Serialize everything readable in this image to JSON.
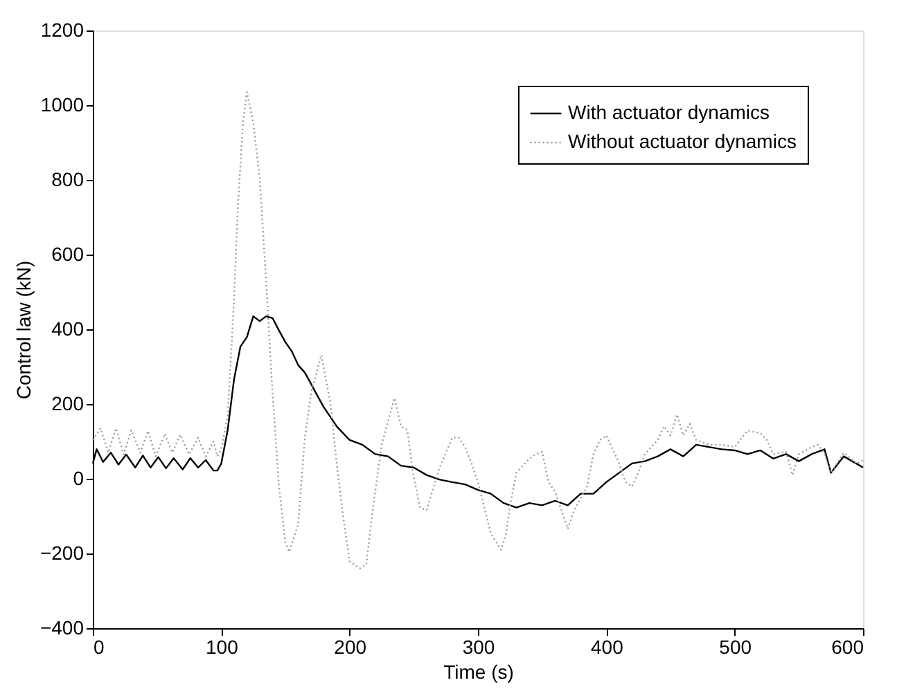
{
  "chart_data": {
    "type": "line",
    "xlabel": "Time (s)",
    "ylabel": "Control law (kN)",
    "xlim": [
      0,
      600
    ],
    "xticks": [
      0,
      100,
      200,
      300,
      400,
      500,
      600
    ],
    "ylim": [
      -400,
      1200
    ],
    "yticks": [
      -400,
      -200,
      0,
      200,
      400,
      600,
      800,
      1000,
      1200
    ],
    "grid": false,
    "legend": "top right",
    "marker": "none",
    "series": [
      {
        "name": "With actuator dynamics",
        "color": "#000000",
        "line_style": "solid",
        "x": [
          0,
          3,
          8,
          14,
          20,
          26,
          33,
          39,
          45,
          51,
          57,
          63,
          70,
          76,
          82,
          88,
          94,
          97,
          100,
          105,
          110,
          115,
          120,
          125,
          130,
          135,
          140,
          145,
          150,
          155,
          160,
          165,
          170,
          175,
          180,
          185,
          190,
          200,
          210,
          220,
          230,
          240,
          250,
          260,
          270,
          280,
          290,
          300,
          310,
          320,
          330,
          340,
          350,
          360,
          370,
          380,
          390,
          400,
          410,
          420,
          430,
          440,
          450,
          460,
          470,
          480,
          490,
          500,
          510,
          520,
          530,
          540,
          550,
          560,
          570,
          575,
          585,
          595,
          600
        ],
        "values": [
          41,
          79,
          45,
          70,
          38,
          65,
          30,
          62,
          30,
          58,
          28,
          55,
          25,
          55,
          30,
          50,
          22,
          22,
          40,
          129,
          266,
          354,
          379,
          435,
          422,
          435,
          430,
          397,
          366,
          341,
          304,
          285,
          254,
          222,
          191,
          166,
          140,
          104,
          91,
          66,
          60,
          35,
          30,
          10,
          -2,
          -9,
          -15,
          -30,
          -40,
          -65,
          -77,
          -65,
          -71,
          -59,
          -71,
          -40,
          -40,
          -9,
          16,
          41,
          47,
          60,
          79,
          60,
          91,
          85,
          79,
          76,
          66,
          76,
          54,
          66,
          47,
          66,
          79,
          16,
          60,
          40,
          30
        ]
      },
      {
        "name": "Without actuator dynamics",
        "color": "#999999",
        "line_style": "dotted",
        "x": [
          0,
          6,
          12,
          18,
          24,
          30,
          37,
          43,
          49,
          56,
          62,
          68,
          75,
          82,
          88,
          94,
          97,
          100,
          105,
          110,
          113,
          117,
          120,
          125,
          130,
          135,
          140,
          145,
          150,
          153,
          160,
          165,
          170,
          178,
          185,
          190,
          195,
          200,
          208,
          213,
          218,
          225,
          235,
          240,
          245,
          250,
          255,
          260,
          270,
          280,
          285,
          290,
          295,
          300,
          310,
          318,
          322,
          325,
          330,
          340,
          345,
          350,
          355,
          360,
          370,
          375,
          380,
          385,
          390,
          395,
          400,
          405,
          410,
          415,
          420,
          425,
          430,
          440,
          445,
          450,
          455,
          460,
          465,
          470,
          480,
          490,
          500,
          510,
          520,
          525,
          530,
          540,
          545,
          550,
          560,
          565,
          570,
          575,
          585,
          595,
          600
        ],
        "values": [
          104,
          135,
          70,
          135,
          65,
          130,
          70,
          128,
          60,
          120,
          70,
          118,
          65,
          110,
          60,
          100,
          60,
          79,
          166,
          479,
          729,
          954,
          1035,
          954,
          804,
          529,
          229,
          -21,
          -171,
          -196,
          -121,
          104,
          229,
          331,
          204,
          41,
          -100,
          -221,
          -240,
          -230,
          -84,
          91,
          216,
          141,
          130,
          4,
          -77,
          -84,
          29,
          110,
          110,
          85,
          41,
          -9,
          -146,
          -190,
          -146,
          -71,
          16,
          54,
          66,
          72,
          -9,
          -34,
          -134,
          -84,
          -53,
          -21,
          66,
          104,
          116,
          79,
          41,
          -9,
          -21,
          16,
          66,
          104,
          141,
          116,
          172,
          116,
          147,
          104,
          91,
          91,
          85,
          129,
          122,
          104,
          66,
          72,
          10,
          66,
          85,
          91,
          66,
          16,
          70,
          40,
          50
        ]
      }
    ]
  }
}
